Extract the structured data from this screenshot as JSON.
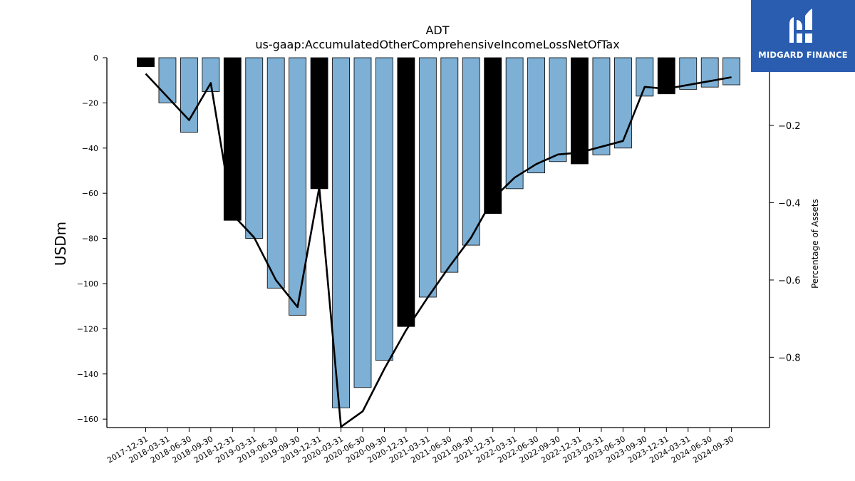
{
  "brand": {
    "name": "MIDGARD FINANCE",
    "icon": "midgard-logo-icon",
    "color": "#2a5db0"
  },
  "chart_data": {
    "type": "bar",
    "title": "ADT",
    "subtitle": "us-gaap:AccumulatedOtherComprehensiveIncomeLossNetOfTax",
    "ylabel": "USDm",
    "y2label": "Percentage of Assets",
    "ylim": [
      -162,
      0
    ],
    "y2lim": [
      -0.982,
      -0.0245
    ],
    "yticks": [
      0,
      -20,
      -40,
      -60,
      -80,
      -100,
      -120,
      -140,
      -160
    ],
    "y2ticks": [
      -0.2,
      -0.4,
      -0.6,
      -0.8
    ],
    "grid": false,
    "colors": {
      "quarter": "#7eb0d5",
      "year_end": "#000000",
      "line": "#000000"
    },
    "categories": [
      "2017-12-31",
      "2018-03-31",
      "2018-06-30",
      "2018-09-30",
      "2018-12-31",
      "2019-03-31",
      "2019-06-30",
      "2019-09-30",
      "2019-12-31",
      "2020-03-31",
      "2020-06-30",
      "2020-09-30",
      "2020-12-31",
      "2021-03-31",
      "2021-06-30",
      "2021-09-30",
      "2021-12-31",
      "2022-03-31",
      "2022-06-30",
      "2022-09-30",
      "2022-12-31",
      "2023-03-31",
      "2023-06-30",
      "2023-09-30",
      "2023-12-31",
      "2024-03-31",
      "2024-06-30",
      "2024-09-30"
    ],
    "series": [
      {
        "type": "bar",
        "values": [
          -4,
          -20,
          -33,
          -15,
          -72,
          -80,
          -102,
          -114,
          -58,
          -155,
          -146,
          -134,
          -119,
          -106,
          -95,
          -83,
          -69,
          -58,
          -51,
          -46,
          -47,
          -43,
          -40,
          -17,
          -16,
          -14,
          -13,
          -12
        ],
        "year_end": [
          true,
          false,
          false,
          false,
          true,
          false,
          false,
          false,
          true,
          false,
          false,
          false,
          true,
          false,
          false,
          false,
          true,
          false,
          false,
          false,
          true,
          false,
          false,
          false,
          true,
          false,
          false,
          false
        ]
      },
      {
        "type": "line",
        "axis": "right",
        "values": [
          -0.066,
          -0.126,
          -0.186,
          -0.09,
          -0.43,
          -0.49,
          -0.6,
          -0.67,
          -0.36,
          -0.98,
          -0.94,
          -0.83,
          -0.73,
          -0.645,
          -0.565,
          -0.49,
          -0.39,
          -0.335,
          -0.3,
          -0.275,
          -0.27,
          -0.255,
          -0.24,
          -0.1,
          -0.105,
          -0.095,
          -0.085,
          -0.075
        ]
      }
    ]
  }
}
